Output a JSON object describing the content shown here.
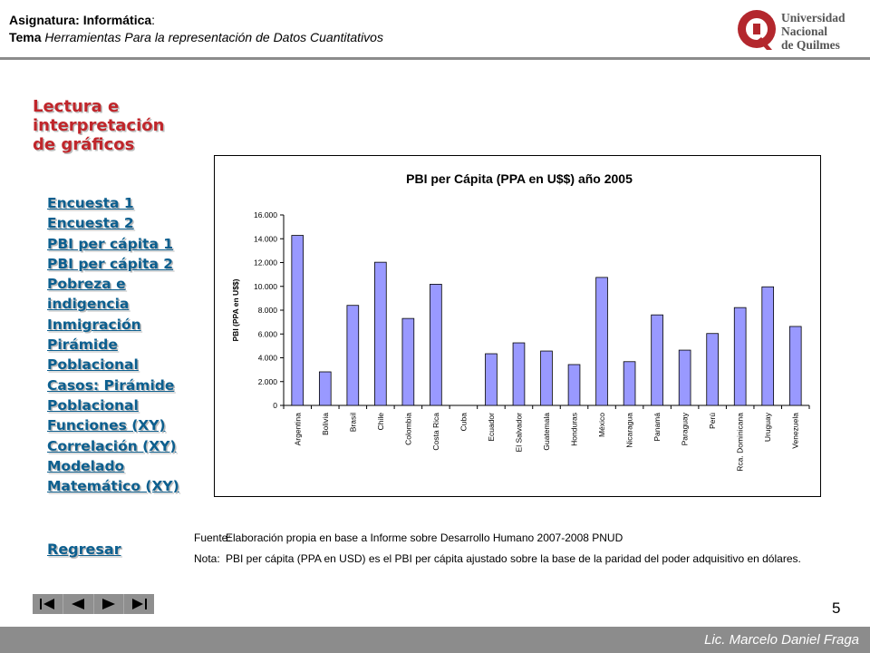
{
  "header": {
    "subject_label": "Asignatura: ",
    "subject_value": "Informática",
    "subject_colon": ":",
    "topic_label": "Tema",
    "topic_value": " Herramientas Para la representación de Datos Cuantitativos",
    "logo_lines": [
      "Universidad",
      "Nacional",
      "de Quilmes"
    ],
    "logo_letter": "Q"
  },
  "title": {
    "lines": [
      "Lectura e",
      "interpretación",
      "de gráficos"
    ]
  },
  "nav": {
    "items": [
      "Encuesta 1",
      "Encuesta 2",
      "PBI per cápita 1",
      "PBI per cápita 2",
      "Pobreza e",
      "indigencia",
      "Inmigración",
      "Pirámide",
      "Poblacional",
      "Casos: Pirámide",
      "Poblacional",
      "Funciones (XY)",
      "Correlación (XY)",
      "Modelado",
      "Matemático (XY)"
    ],
    "back": "Regresar"
  },
  "chart_data": {
    "type": "bar",
    "title": "PBI per Cápita (PPA en U$$) año 2005",
    "xlabel": "",
    "ylabel": "PBI (PPA en U$$)",
    "ylim": [
      0,
      16000
    ],
    "yticks": [
      "0",
      "2.000",
      "4.000",
      "6.000",
      "8.000",
      "10.000",
      "12.000",
      "14.000",
      "16.000"
    ],
    "grid": false,
    "bar_color": "#9999ff",
    "categories": [
      "Argentina",
      "Bolivia",
      "Brasil",
      "Chile",
      "Colombia",
      "Costa Rica",
      "Cuba",
      "Ecuador",
      "El Salvador",
      "Guatemala",
      "Honduras",
      "México",
      "Nicaragua",
      "Panamá",
      "Paraguay",
      "Perú",
      "Rca. Dominicana",
      "Uruguay",
      "Venezuela"
    ],
    "values": [
      14280,
      2819,
      8402,
      12027,
      7304,
      10180,
      0,
      4341,
      5255,
      4568,
      3430,
      10751,
      3674,
      7605,
      4642,
      6039,
      8217,
      9962,
      6632
    ]
  },
  "notes": {
    "source_label": "Fuente:",
    "source_text": "Elaboración propia en base a Informe sobre Desarrollo Humano 2007-2008  PNUD",
    "note_label": "Nota:",
    "note_text": "PBI per cápita (PPA en USD) es el PBI per cápita ajustado sobre la base de la paridad del poder adquisitivo en dólares."
  },
  "page_number": "5",
  "footer": {
    "author": "Lic. Marcelo Daniel Fraga"
  }
}
